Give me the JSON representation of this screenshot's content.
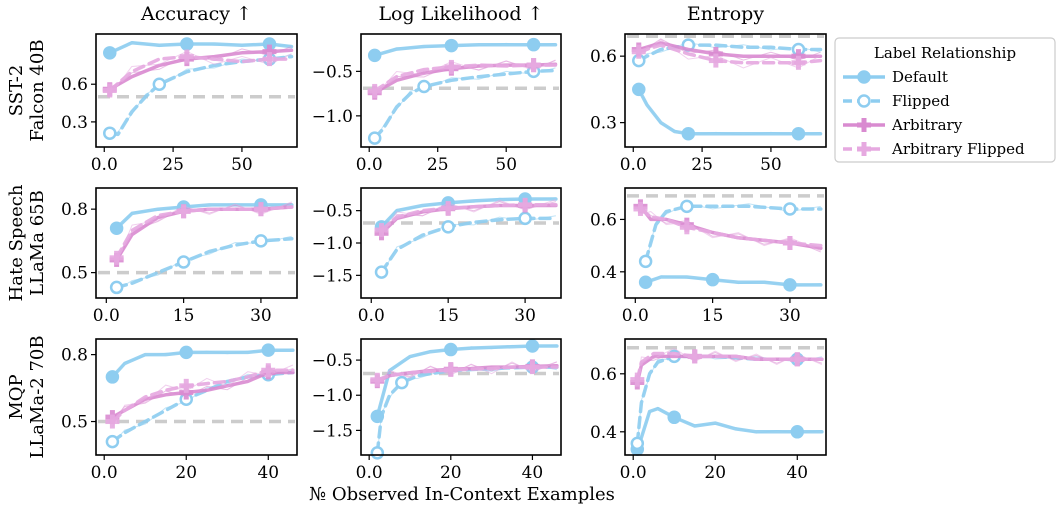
{
  "figure": {
    "xlabel": "№ Observed In-Context Examples",
    "legend_title": "Label Relationship"
  },
  "colors": {
    "default": "#8ecdf0",
    "flipped": "#8ecdf0",
    "arbitrary": "#d98bd0",
    "arbitrary_flipped": "#e6a9e0",
    "reference": "#cccccc"
  },
  "chart_data": [
    {
      "type": "line",
      "column_title": "Accuracy ↑",
      "row_label": [
        "SST-2",
        "Falcon 40B"
      ],
      "xlim": [
        -3,
        70
      ],
      "ylim": [
        0.1,
        1.0
      ],
      "xticks": [
        0,
        25,
        50
      ],
      "yticks": [
        0.3,
        0.6
      ],
      "reference": 0.5,
      "series": [
        {
          "name": "Default",
          "x": [
            2,
            10,
            20,
            30,
            40,
            50,
            60,
            68
          ],
          "y": [
            0.85,
            0.93,
            0.91,
            0.92,
            0.92,
            0.91,
            0.92,
            0.9
          ]
        },
        {
          "name": "Flipped",
          "x": [
            2,
            5,
            10,
            15,
            20,
            30,
            40,
            50,
            60,
            68
          ],
          "y": [
            0.21,
            0.2,
            0.38,
            0.5,
            0.6,
            0.7,
            0.75,
            0.78,
            0.8,
            0.82
          ]
        },
        {
          "name": "Arbitrary",
          "x": [
            2,
            10,
            20,
            30,
            40,
            50,
            60,
            68
          ],
          "y": [
            0.56,
            0.66,
            0.75,
            0.8,
            0.82,
            0.85,
            0.86,
            0.87
          ]
        },
        {
          "name": "Arbitrary Flipped",
          "x": [
            2,
            10,
            20,
            30,
            40,
            50,
            60,
            68
          ],
          "y": [
            0.55,
            0.7,
            0.8,
            0.82,
            0.8,
            0.78,
            0.8,
            0.8
          ]
        }
      ]
    },
    {
      "type": "line",
      "column_title": "Log Likelihood ↑",
      "row_label": [
        "SST-2",
        "Falcon 40B"
      ],
      "xlim": [
        -3,
        70
      ],
      "ylim": [
        -1.35,
        -0.08
      ],
      "xticks": [
        0,
        25,
        50
      ],
      "yticks": [
        -1.0,
        -0.5
      ],
      "reference": -0.69,
      "series": [
        {
          "name": "Default",
          "x": [
            2,
            10,
            20,
            30,
            40,
            50,
            60,
            68
          ],
          "y": [
            -0.32,
            -0.25,
            -0.22,
            -0.21,
            -0.2,
            -0.2,
            -0.2,
            -0.2
          ]
        },
        {
          "name": "Flipped",
          "x": [
            2,
            5,
            10,
            15,
            20,
            30,
            40,
            50,
            60,
            68
          ],
          "y": [
            -1.25,
            -1.15,
            -0.9,
            -0.75,
            -0.67,
            -0.6,
            -0.56,
            -0.53,
            -0.5,
            -0.49
          ]
        },
        {
          "name": "Arbitrary",
          "x": [
            2,
            10,
            20,
            30,
            40,
            50,
            60,
            68
          ],
          "y": [
            -0.74,
            -0.6,
            -0.52,
            -0.47,
            -0.44,
            -0.43,
            -0.43,
            -0.42
          ]
        },
        {
          "name": "Arbitrary Flipped",
          "x": [
            2,
            10,
            20,
            30,
            40,
            50,
            60,
            68
          ],
          "y": [
            -0.72,
            -0.56,
            -0.48,
            -0.45,
            -0.43,
            -0.44,
            -0.43,
            -0.43
          ]
        }
      ]
    },
    {
      "type": "line",
      "column_title": "Entropy",
      "row_label": [
        "SST-2",
        "Falcon 40B"
      ],
      "xlim": [
        -3,
        70
      ],
      "ylim": [
        0.19,
        0.7
      ],
      "xticks": [
        0,
        25,
        50
      ],
      "yticks": [
        0.3,
        0.6
      ],
      "reference": 0.69,
      "series": [
        {
          "name": "Default",
          "x": [
            2,
            5,
            10,
            15,
            20,
            30,
            40,
            50,
            60,
            68
          ],
          "y": [
            0.45,
            0.38,
            0.3,
            0.26,
            0.25,
            0.25,
            0.25,
            0.25,
            0.25,
            0.25
          ]
        },
        {
          "name": "Flipped",
          "x": [
            2,
            5,
            10,
            20,
            30,
            40,
            50,
            60,
            68
          ],
          "y": [
            0.58,
            0.6,
            0.63,
            0.65,
            0.65,
            0.64,
            0.64,
            0.63,
            0.63
          ]
        },
        {
          "name": "Arbitrary",
          "x": [
            2,
            10,
            20,
            30,
            40,
            50,
            60,
            68
          ],
          "y": [
            0.63,
            0.66,
            0.63,
            0.61,
            0.6,
            0.6,
            0.6,
            0.6
          ]
        },
        {
          "name": "Arbitrary Flipped",
          "x": [
            2,
            10,
            20,
            30,
            40,
            50,
            60,
            68
          ],
          "y": [
            0.62,
            0.65,
            0.61,
            0.58,
            0.57,
            0.57,
            0.57,
            0.58
          ]
        }
      ]
    },
    {
      "type": "line",
      "column_title": "Accuracy ↑",
      "row_label": [
        "Hate Speech",
        "LLaMa 65B"
      ],
      "xlim": [
        -2,
        37
      ],
      "ylim": [
        0.38,
        0.9
      ],
      "xticks": [
        0,
        15,
        30
      ],
      "yticks": [
        0.5,
        0.8
      ],
      "reference": 0.5,
      "series": [
        {
          "name": "Default",
          "x": [
            2,
            5,
            10,
            15,
            20,
            25,
            30,
            36
          ],
          "y": [
            0.71,
            0.78,
            0.8,
            0.81,
            0.82,
            0.82,
            0.82,
            0.82
          ]
        },
        {
          "name": "Flipped",
          "x": [
            2,
            5,
            10,
            15,
            20,
            25,
            30,
            36
          ],
          "y": [
            0.43,
            0.45,
            0.5,
            0.55,
            0.6,
            0.63,
            0.65,
            0.66
          ]
        },
        {
          "name": "Arbitrary",
          "x": [
            2,
            5,
            10,
            15,
            20,
            25,
            30,
            36
          ],
          "y": [
            0.56,
            0.68,
            0.76,
            0.79,
            0.8,
            0.8,
            0.8,
            0.81
          ]
        },
        {
          "name": "Arbitrary Flipped",
          "x": [
            2,
            5,
            10,
            15,
            20,
            25,
            30,
            36
          ],
          "y": [
            0.57,
            0.7,
            0.77,
            0.79,
            0.8,
            0.8,
            0.8,
            0.81
          ]
        }
      ]
    },
    {
      "type": "line",
      "column_title": "Log Likelihood ↑",
      "row_label": [
        "Hate Speech",
        "LLaMa 65B"
      ],
      "xlim": [
        -2,
        37
      ],
      "ylim": [
        -1.85,
        -0.15
      ],
      "xticks": [
        0,
        15,
        30
      ],
      "yticks": [
        -1.5,
        -1.0,
        -0.5
      ],
      "reference": -0.69,
      "series": [
        {
          "name": "Default",
          "x": [
            2,
            5,
            10,
            15,
            20,
            25,
            30,
            36
          ],
          "y": [
            -0.75,
            -0.5,
            -0.42,
            -0.38,
            -0.35,
            -0.33,
            -0.32,
            -0.32
          ]
        },
        {
          "name": "Flipped",
          "x": [
            2,
            5,
            10,
            15,
            20,
            25,
            30,
            36
          ],
          "y": [
            -1.45,
            -1.1,
            -0.88,
            -0.75,
            -0.68,
            -0.64,
            -0.62,
            -0.62
          ]
        },
        {
          "name": "Arbitrary",
          "x": [
            2,
            5,
            10,
            15,
            20,
            25,
            30,
            36
          ],
          "y": [
            -0.85,
            -0.62,
            -0.52,
            -0.47,
            -0.44,
            -0.42,
            -0.42,
            -0.42
          ]
        },
        {
          "name": "Arbitrary Flipped",
          "x": [
            2,
            5,
            10,
            15,
            20,
            25,
            30,
            36
          ],
          "y": [
            -0.8,
            -0.6,
            -0.5,
            -0.46,
            -0.44,
            -0.42,
            -0.41,
            -0.41
          ]
        }
      ]
    },
    {
      "type": "line",
      "column_title": "Entropy",
      "row_label": [
        "Hate Speech",
        "LLaMa 65B"
      ],
      "xlim": [
        -2,
        37
      ],
      "ylim": [
        0.3,
        0.72
      ],
      "xticks": [
        0,
        15,
        30
      ],
      "yticks": [
        0.4,
        0.6
      ],
      "reference": 0.69,
      "series": [
        {
          "name": "Default",
          "x": [
            2,
            5,
            10,
            15,
            20,
            25,
            30,
            36
          ],
          "y": [
            0.36,
            0.38,
            0.38,
            0.37,
            0.36,
            0.36,
            0.35,
            0.35
          ]
        },
        {
          "name": "Flipped",
          "x": [
            2,
            4,
            6,
            10,
            15,
            22,
            30,
            36
          ],
          "y": [
            0.44,
            0.58,
            0.63,
            0.65,
            0.65,
            0.65,
            0.64,
            0.64
          ]
        },
        {
          "name": "Arbitrary",
          "x": [
            1,
            3,
            6,
            10,
            15,
            20,
            25,
            30,
            36
          ],
          "y": [
            0.65,
            0.6,
            0.6,
            0.58,
            0.55,
            0.53,
            0.52,
            0.51,
            0.49
          ]
        },
        {
          "name": "Arbitrary Flipped",
          "x": [
            1,
            3,
            6,
            10,
            15,
            20,
            25,
            30,
            36
          ],
          "y": [
            0.64,
            0.61,
            0.6,
            0.57,
            0.55,
            0.53,
            0.52,
            0.51,
            0.5
          ]
        }
      ]
    },
    {
      "type": "line",
      "column_title": "Accuracy ↑",
      "row_label": [
        "MQP",
        "LLaMa-2 70B"
      ],
      "xlim": [
        -2,
        47
      ],
      "ylim": [
        0.35,
        0.87
      ],
      "xticks": [
        0,
        20,
        40
      ],
      "yticks": [
        0.5,
        0.8
      ],
      "reference": 0.5,
      "series": [
        {
          "name": "Default",
          "x": [
            2,
            5,
            10,
            15,
            20,
            25,
            30,
            35,
            40,
            46
          ],
          "y": [
            0.7,
            0.76,
            0.8,
            0.8,
            0.81,
            0.81,
            0.81,
            0.81,
            0.82,
            0.82
          ]
        },
        {
          "name": "Flipped",
          "x": [
            2,
            5,
            10,
            15,
            20,
            25,
            30,
            35,
            40,
            46
          ],
          "y": [
            0.41,
            0.45,
            0.5,
            0.55,
            0.6,
            0.64,
            0.68,
            0.7,
            0.71,
            0.72
          ]
        },
        {
          "name": "Arbitrary",
          "x": [
            2,
            5,
            10,
            15,
            20,
            25,
            30,
            35,
            40,
            46
          ],
          "y": [
            0.52,
            0.55,
            0.6,
            0.62,
            0.63,
            0.64,
            0.66,
            0.68,
            0.72,
            0.72
          ]
        },
        {
          "name": "Arbitrary Flipped",
          "x": [
            2,
            5,
            10,
            15,
            20,
            25,
            30,
            35,
            40,
            46
          ],
          "y": [
            0.5,
            0.55,
            0.61,
            0.64,
            0.66,
            0.67,
            0.68,
            0.7,
            0.73,
            0.73
          ]
        }
      ]
    },
    {
      "type": "line",
      "column_title": "Log Likelihood ↑",
      "row_label": [
        "MQP",
        "LLaMa-2 70B"
      ],
      "xlim": [
        -2,
        47
      ],
      "ylim": [
        -1.85,
        -0.2
      ],
      "xticks": [
        0,
        20,
        40
      ],
      "yticks": [
        -1.5,
        -1.0,
        -0.5
      ],
      "reference": -0.69,
      "series": [
        {
          "name": "Default",
          "x": [
            2,
            5,
            10,
            15,
            20,
            25,
            30,
            35,
            40,
            46
          ],
          "y": [
            -1.3,
            -0.65,
            -0.45,
            -0.38,
            -0.35,
            -0.33,
            -0.32,
            -0.31,
            -0.3,
            -0.3
          ]
        },
        {
          "name": "Flipped",
          "x": [
            2,
            3,
            5,
            8,
            12,
            20,
            30,
            40,
            46
          ],
          "y": [
            -1.82,
            -1.3,
            -1.0,
            -0.82,
            -0.72,
            -0.65,
            -0.62,
            -0.6,
            -0.6
          ]
        },
        {
          "name": "Arbitrary",
          "x": [
            2,
            5,
            10,
            15,
            20,
            25,
            30,
            35,
            40,
            46
          ],
          "y": [
            -0.8,
            -0.72,
            -0.68,
            -0.65,
            -0.63,
            -0.62,
            -0.6,
            -0.6,
            -0.59,
            -0.58
          ]
        },
        {
          "name": "Arbitrary Flipped",
          "x": [
            2,
            5,
            10,
            15,
            20,
            25,
            30,
            35,
            40,
            46
          ],
          "y": [
            -0.78,
            -0.72,
            -0.68,
            -0.66,
            -0.64,
            -0.63,
            -0.62,
            -0.6,
            -0.6,
            -0.6
          ]
        }
      ]
    },
    {
      "type": "line",
      "column_title": "Entropy",
      "row_label": [
        "MQP",
        "LLaMa-2 70B"
      ],
      "xlim": [
        -2,
        47
      ],
      "ylim": [
        0.32,
        0.72
      ],
      "xticks": [
        0,
        20,
        40
      ],
      "yticks": [
        0.4,
        0.6
      ],
      "reference": 0.69,
      "series": [
        {
          "name": "Default",
          "x": [
            1,
            2,
            4,
            6,
            10,
            15,
            20,
            25,
            30,
            35,
            40,
            46
          ],
          "y": [
            0.34,
            0.38,
            0.47,
            0.48,
            0.45,
            0.42,
            0.43,
            0.41,
            0.4,
            0.4,
            0.4,
            0.4
          ]
        },
        {
          "name": "Flipped",
          "x": [
            1,
            2,
            4,
            6,
            10,
            15,
            20,
            30,
            40,
            46
          ],
          "y": [
            0.36,
            0.5,
            0.6,
            0.64,
            0.66,
            0.66,
            0.66,
            0.65,
            0.65,
            0.65
          ]
        },
        {
          "name": "Arbitrary",
          "x": [
            1,
            2,
            5,
            10,
            15,
            20,
            25,
            30,
            35,
            40,
            46
          ],
          "y": [
            0.57,
            0.63,
            0.66,
            0.66,
            0.66,
            0.66,
            0.66,
            0.65,
            0.65,
            0.65,
            0.65
          ]
        },
        {
          "name": "Arbitrary Flipped",
          "x": [
            1,
            2,
            5,
            10,
            15,
            20,
            25,
            30,
            35,
            40,
            46
          ],
          "y": [
            0.58,
            0.64,
            0.67,
            0.67,
            0.66,
            0.66,
            0.66,
            0.65,
            0.65,
            0.65,
            0.65
          ]
        }
      ]
    }
  ]
}
